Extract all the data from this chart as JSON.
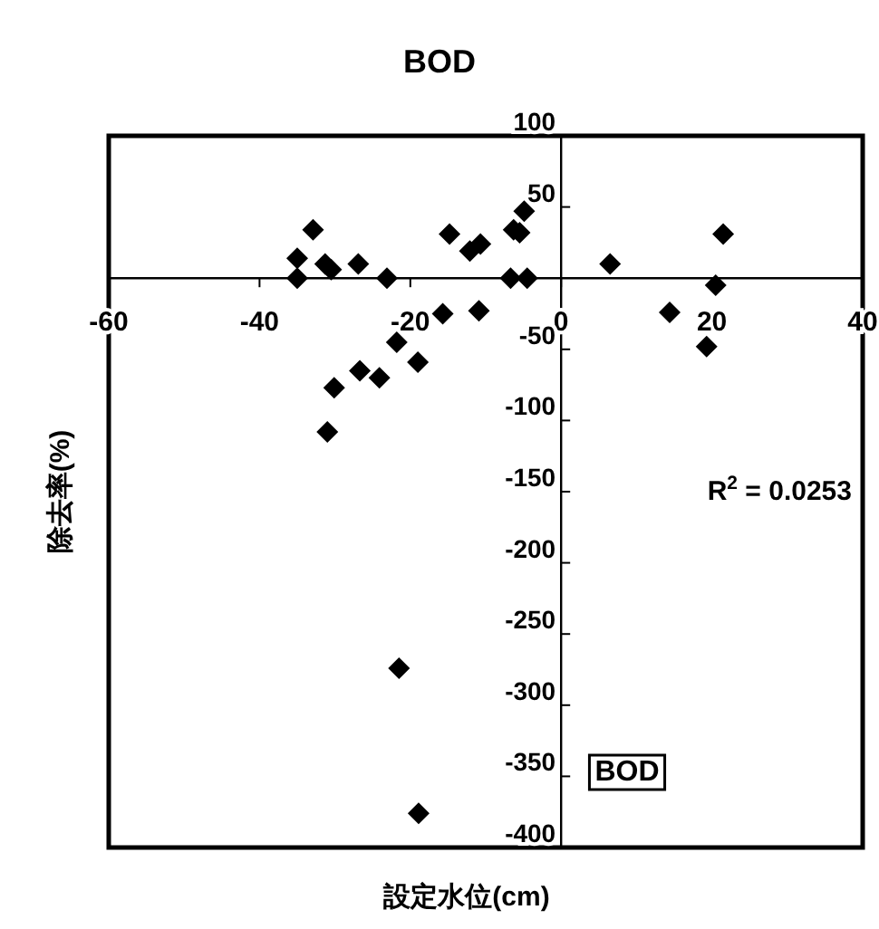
{
  "chart_data": {
    "type": "scatter",
    "title": "BOD",
    "xlabel": "設定水位(cm)",
    "ylabel": "除去率(%)",
    "annotations": [
      "R$^{2}$ = 0.0253",
      "BOD"
    ],
    "xlim": [
      -60,
      40
    ],
    "xticks": [
      -60,
      -40,
      -20,
      0,
      20,
      40
    ],
    "ylim": [
      -400,
      100
    ],
    "yticks": [
      -400,
      -350,
      -300,
      -250,
      -200,
      -150,
      -100,
      -50,
      50,
      100
    ],
    "grid": false,
    "marker": "diamond",
    "series": [
      {
        "color": "#000000",
        "x": [
          -32.9,
          -35.0,
          -35.0,
          -31.3,
          -30.5,
          -26.9,
          -23.1,
          -14.8,
          -12.1,
          -10.7,
          -6.3,
          -4.9,
          -5.5,
          -6.7,
          -4.5,
          6.5,
          21.5,
          20.5,
          14.4,
          19.3,
          -15.7,
          -10.9,
          -21.8,
          -19.0,
          -26.7,
          -24.1,
          -30.1,
          -31.0,
          -21.5,
          -18.9
        ],
        "values": [
          34,
          14,
          0,
          10,
          6,
          10,
          0,
          31,
          19,
          24,
          34,
          47,
          32,
          0,
          0,
          10,
          31,
          -5,
          -24,
          -48,
          -25,
          -23,
          -45,
          -59,
          -65,
          -70,
          -77,
          -108,
          -274,
          -376
        ]
      }
    ]
  }
}
